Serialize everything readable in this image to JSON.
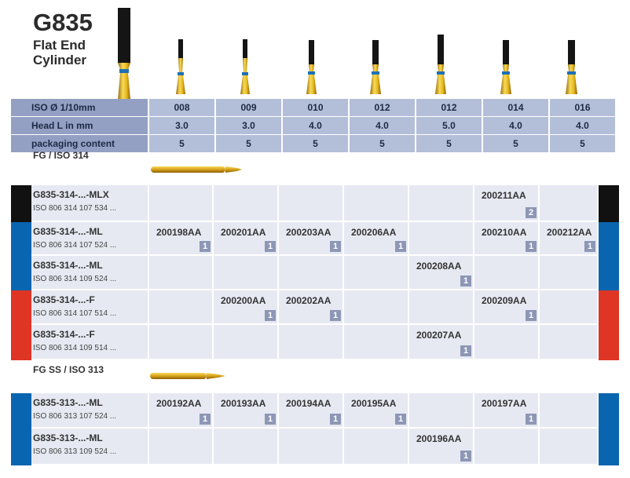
{
  "header": {
    "product_code": "G835",
    "name_line1": "Flat End",
    "name_line2": "Cylinder"
  },
  "spec_table": {
    "rows": [
      {
        "label": "ISO Ø 1/10mm",
        "values": [
          "008",
          "009",
          "010",
          "012",
          "012",
          "014",
          "016"
        ]
      },
      {
        "label": "Head L in mm",
        "values": [
          "3.0",
          "3.0",
          "4.0",
          "4.0",
          "5.0",
          "4.0",
          "4.0"
        ]
      },
      {
        "label": "packaging content",
        "values": [
          "5",
          "5",
          "5",
          "5",
          "5",
          "5",
          "5"
        ]
      }
    ]
  },
  "sections": [
    {
      "label": "FG / ISO 314",
      "rows": [
        {
          "code": "G835-314-...-MLX",
          "iso": "ISO 806 314 107 534 ...",
          "stripe": "#111111",
          "cells": [
            null,
            null,
            null,
            null,
            null,
            {
              "order": "200211AA",
              "pack": "2"
            },
            null
          ]
        },
        {
          "code": "G835-314-...-ML",
          "iso": "ISO 806 314 107 524 ...",
          "stripe": "#0a65b0",
          "cells": [
            {
              "order": "200198AA",
              "pack": "1"
            },
            {
              "order": "200201AA",
              "pack": "1"
            },
            {
              "order": "200203AA",
              "pack": "1"
            },
            {
              "order": "200206AA",
              "pack": "1"
            },
            null,
            {
              "order": "200210AA",
              "pack": "1"
            },
            {
              "order": "200212AA",
              "pack": "1"
            }
          ]
        },
        {
          "code": "G835-314-...-ML",
          "iso": "ISO 806 314 109 524 ...",
          "stripe": "#0a65b0",
          "cells": [
            null,
            null,
            null,
            null,
            {
              "order": "200208AA",
              "pack": "1"
            },
            null,
            null
          ]
        },
        {
          "code": "G835-314-...-F",
          "iso": "ISO 806 314 107 514 ...",
          "stripe": "#de3525",
          "cells": [
            null,
            {
              "order": "200200AA",
              "pack": "1"
            },
            {
              "order": "200202AA",
              "pack": "1"
            },
            null,
            null,
            {
              "order": "200209AA",
              "pack": "1"
            },
            null
          ]
        },
        {
          "code": "G835-314-...-F",
          "iso": "ISO 806 314 109 514 ...",
          "stripe": "#de3525",
          "cells": [
            null,
            null,
            null,
            null,
            {
              "order": "200207AA",
              "pack": "1"
            },
            null,
            null
          ]
        }
      ]
    },
    {
      "label": "FG SS / ISO 313",
      "rows": [
        {
          "code": "G835-313-...-ML",
          "iso": "ISO 806 313 107 524 ...",
          "stripe": "#0a65b0",
          "cells": [
            {
              "order": "200192AA",
              "pack": "1"
            },
            {
              "order": "200193AA",
              "pack": "1"
            },
            {
              "order": "200194AA",
              "pack": "1"
            },
            {
              "order": "200195AA",
              "pack": "1"
            },
            null,
            {
              "order": "200197AA",
              "pack": "1"
            },
            null
          ]
        },
        {
          "code": "G835-313-...-ML",
          "iso": "ISO 806 313 109 524 ...",
          "stripe": "#0a65b0",
          "cells": [
            null,
            null,
            null,
            null,
            {
              "order": "200196AA",
              "pack": "1"
            },
            null,
            null
          ]
        }
      ]
    }
  ],
  "colors": {
    "gold": "#e6b81c",
    "ring": "#1f6fb5",
    "head": "#151515"
  }
}
